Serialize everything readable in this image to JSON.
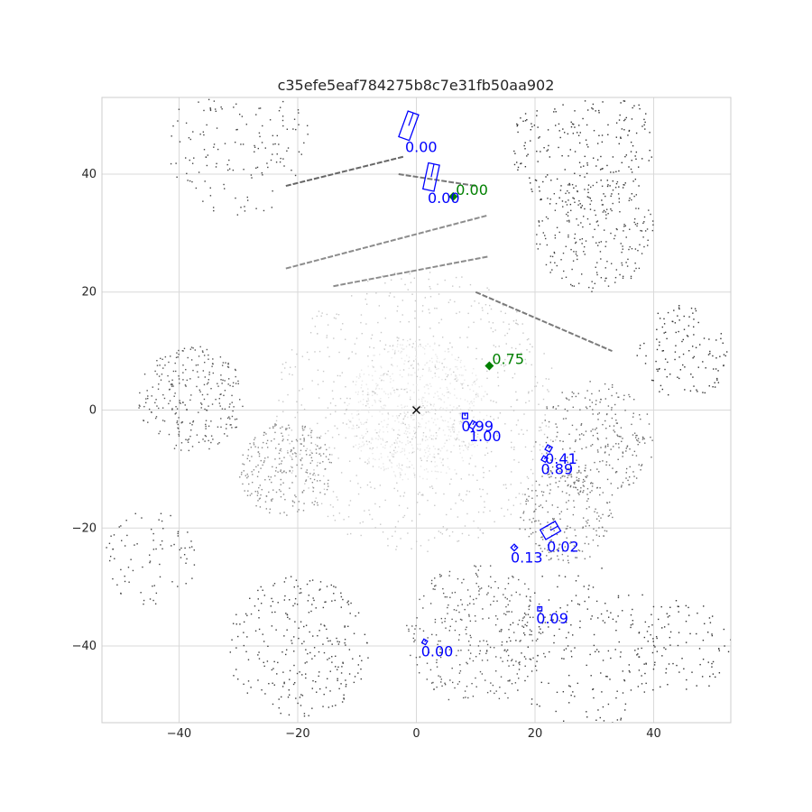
{
  "chart_data": {
    "type": "scatter",
    "title": "c35efe5eaf784275b8c7e31fb50aa902",
    "xlabel": "",
    "ylabel": "",
    "xlim": [
      -53,
      53
    ],
    "ylim": [
      -53,
      53
    ],
    "x_ticks": [
      -40,
      -20,
      0,
      20,
      40
    ],
    "y_ticks": [
      -40,
      -20,
      0,
      20,
      40
    ],
    "x_tick_labels": [
      "−40",
      "−20",
      "0",
      "20",
      "40"
    ],
    "y_tick_labels": [
      "−40",
      "−20",
      "0",
      "20",
      "40"
    ],
    "grid": true,
    "ego_marker": {
      "x": 0,
      "y": 0,
      "symbol": "x",
      "color": "#000000"
    },
    "point_cloud": {
      "description_of_marks": "lidar points, gray shades",
      "clusters": [
        {
          "x": 0,
          "y": 0,
          "r": 12,
          "n": 700,
          "shade": "#e8e8e8"
        },
        {
          "x": 0,
          "y": 0,
          "r": 24,
          "n": 700,
          "shade": "#c8c8c8"
        },
        {
          "x": -22,
          "y": -10,
          "r": 8,
          "n": 260,
          "shade": "#8a8a8a"
        },
        {
          "x": -38,
          "y": 2,
          "r": 9,
          "n": 260,
          "shade": "#555555"
        },
        {
          "x": 30,
          "y": -5,
          "r": 10,
          "n": 260,
          "shade": "#6a6a6a"
        },
        {
          "x": 28,
          "y": 45,
          "r": 12,
          "n": 260,
          "shade": "#333333"
        },
        {
          "x": 30,
          "y": 30,
          "r": 10,
          "n": 220,
          "shade": "#444444"
        },
        {
          "x": -30,
          "y": 45,
          "r": 12,
          "n": 160,
          "shade": "#444444"
        },
        {
          "x": -20,
          "y": -40,
          "r": 12,
          "n": 260,
          "shade": "#3d3d3d"
        },
        {
          "x": 10,
          "y": -38,
          "r": 12,
          "n": 300,
          "shade": "#555555"
        },
        {
          "x": 28,
          "y": -40,
          "r": 14,
          "n": 200,
          "shade": "#3a3a3a"
        },
        {
          "x": 25,
          "y": -18,
          "r": 8,
          "n": 220,
          "shade": "#777777"
        },
        {
          "x": 45,
          "y": 10,
          "r": 8,
          "n": 120,
          "shade": "#333333"
        },
        {
          "x": -45,
          "y": -25,
          "r": 8,
          "n": 80,
          "shade": "#444444"
        },
        {
          "x": 45,
          "y": -40,
          "r": 8,
          "n": 90,
          "shade": "#333333"
        }
      ],
      "arcs": [
        {
          "x1": -22,
          "y1": 24,
          "x2": 12,
          "y2": 33,
          "shade": "#8c8c8c"
        },
        {
          "x1": -14,
          "y1": 21,
          "x2": 12,
          "y2": 26,
          "shade": "#8c8c8c"
        },
        {
          "x1": -22,
          "y1": 38,
          "x2": -2,
          "y2": 43,
          "shade": "#666666"
        },
        {
          "x1": 10,
          "y1": 20,
          "x2": 33,
          "y2": 10,
          "shade": "#7a7a7a"
        },
        {
          "x1": -3,
          "y1": 40,
          "x2": 10,
          "y2": 38,
          "shade": "#777777"
        }
      ]
    },
    "ground_truth": {
      "color": "#008000",
      "items": [
        {
          "x": 6.2,
          "y": 36.2,
          "label": "0.00"
        },
        {
          "x": 12.3,
          "y": 7.5,
          "label": "0.75"
        }
      ]
    },
    "detections": {
      "color": "#0000ff",
      "items": [
        {
          "x": -1.3,
          "y": 48.2,
          "w": 1.9,
          "l": 4.6,
          "angle": 20,
          "label": "0.00"
        },
        {
          "x": 2.5,
          "y": 39.5,
          "w": 1.9,
          "l": 4.5,
          "angle": 12,
          "label": "0.00"
        },
        {
          "x": 8.2,
          "y": -1.0,
          "w": 0.9,
          "l": 0.9,
          "angle": 0,
          "label": "0.99"
        },
        {
          "x": 9.5,
          "y": -2.5,
          "w": 0.8,
          "l": 1.2,
          "angle": 30,
          "label": "1.00"
        },
        {
          "x": 22.3,
          "y": -6.5,
          "w": 0.9,
          "l": 0.9,
          "angle": 30,
          "label": "0.41"
        },
        {
          "x": 21.6,
          "y": -8.3,
          "w": 0.8,
          "l": 0.8,
          "angle": 30,
          "label": "0.89"
        },
        {
          "x": 22.6,
          "y": -20.4,
          "w": 1.9,
          "l": 2.9,
          "angle": 60,
          "label": "0.02"
        },
        {
          "x": 16.5,
          "y": -23.3,
          "w": 0.8,
          "l": 0.8,
          "angle": 45,
          "label": "0.13"
        },
        {
          "x": 20.8,
          "y": -33.7,
          "w": 0.7,
          "l": 0.7,
          "angle": 0,
          "label": "0.09"
        },
        {
          "x": 1.4,
          "y": -39.3,
          "w": 0.7,
          "l": 0.7,
          "angle": 30,
          "label": "0.00"
        }
      ]
    }
  }
}
